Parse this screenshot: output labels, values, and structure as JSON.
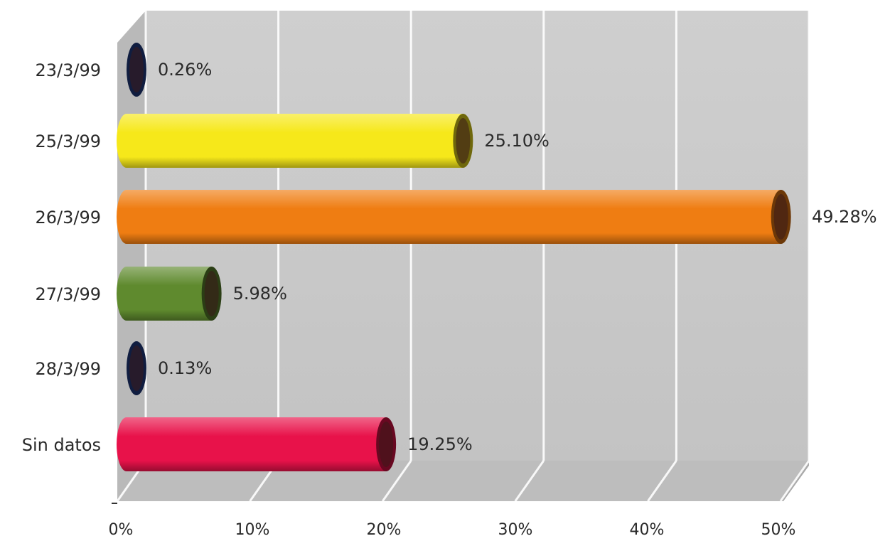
{
  "chart_data": {
    "type": "bar",
    "orientation": "horizontal",
    "categories": [
      "23/3/99",
      "25/3/99",
      "26/3/99",
      "27/3/99",
      "28/3/99",
      "Sin datos"
    ],
    "values": [
      0.26,
      25.1,
      49.28,
      5.98,
      0.13,
      19.25
    ],
    "value_labels": [
      "0.26%",
      "25.10%",
      "49.28%",
      "5.98%",
      "0.13%",
      "19.25%"
    ],
    "bar_colors": [
      "#23408e",
      "#f6e81a",
      "#ef7d12",
      "#5f8a2e",
      "#23408e",
      "#e8124a"
    ],
    "x_ticks": [
      "0%",
      "10%",
      "20%",
      "30%",
      "40%",
      "50%"
    ],
    "xlim": [
      0,
      50
    ],
    "grid": true,
    "style": "3d-cylinder",
    "background_color": "#c9c9c9"
  }
}
